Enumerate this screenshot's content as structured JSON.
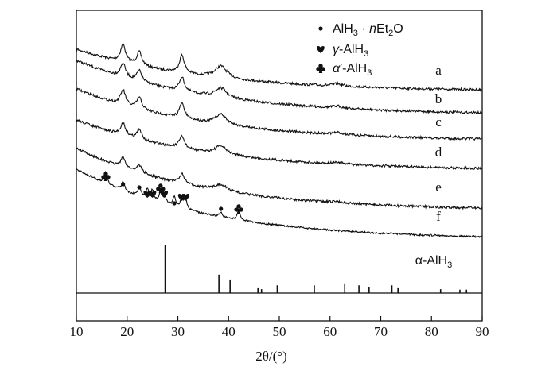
{
  "chart_data": {
    "type": "line",
    "xlim": [
      10,
      90
    ],
    "x_ticks": [
      "10",
      "20",
      "30",
      "40",
      "50",
      "60",
      "70",
      "80",
      "90"
    ],
    "xlabel": "2θ/(°)",
    "y_axis_shown": false,
    "series": [
      {
        "name": "a",
        "offset": 0
      },
      {
        "name": "b",
        "offset": 1
      },
      {
        "name": "c",
        "offset": 2
      },
      {
        "name": "d",
        "offset": 3
      },
      {
        "name": "e",
        "offset": 4
      },
      {
        "name": "f",
        "offset": 5
      }
    ],
    "peaks_common": [
      19.2,
      22.4,
      30.8,
      38.5
    ],
    "peaks_f": [
      {
        "x": 15.8,
        "marker": "club"
      },
      {
        "x": 19.2,
        "marker": "dot"
      },
      {
        "x": 22.4,
        "marker": "dot"
      },
      {
        "x": 24.0,
        "marker": "heart"
      },
      {
        "x": 25.0,
        "marker": "heart"
      },
      {
        "x": 26.6,
        "marker": "club"
      },
      {
        "x": 27.3,
        "marker": "heart"
      },
      {
        "x": 29.3,
        "marker": "dot"
      },
      {
        "x": 30.8,
        "marker": "heart"
      },
      {
        "x": 31.5,
        "marker": "heart"
      },
      {
        "x": 38.5,
        "marker": "dot"
      },
      {
        "x": 42.0,
        "marker": "club"
      }
    ],
    "legend": [
      {
        "marker": "dot",
        "label_main": "AlH",
        "sub1": "3",
        "mid": " · ",
        "italic": "n",
        "label_tail": "Et",
        "sub2": "2",
        "tail2": "O"
      },
      {
        "marker": "heart",
        "greek": "γ",
        "label_main": "-AlH",
        "sub1": "3"
      },
      {
        "marker": "club",
        "greek": "α",
        "prime": "′",
        "label_main": "-AlH",
        "sub1": "3"
      }
    ],
    "reference": {
      "name": "α-AlH",
      "name_sub": "3",
      "sticks": [
        {
          "x": 27.5,
          "intensity": 1.0
        },
        {
          "x": 38.1,
          "intensity": 0.38
        },
        {
          "x": 40.3,
          "intensity": 0.28
        },
        {
          "x": 45.8,
          "intensity": 0.1
        },
        {
          "x": 46.5,
          "intensity": 0.08
        },
        {
          "x": 49.6,
          "intensity": 0.16
        },
        {
          "x": 56.9,
          "intensity": 0.16
        },
        {
          "x": 62.9,
          "intensity": 0.2
        },
        {
          "x": 65.7,
          "intensity": 0.16
        },
        {
          "x": 67.7,
          "intensity": 0.12
        },
        {
          "x": 72.2,
          "intensity": 0.16
        },
        {
          "x": 73.4,
          "intensity": 0.1
        },
        {
          "x": 81.8,
          "intensity": 0.08
        },
        {
          "x": 85.6,
          "intensity": 0.07
        },
        {
          "x": 86.9,
          "intensity": 0.07
        }
      ]
    },
    "colors": {
      "line": "#111111",
      "background": "#ffffff"
    }
  }
}
